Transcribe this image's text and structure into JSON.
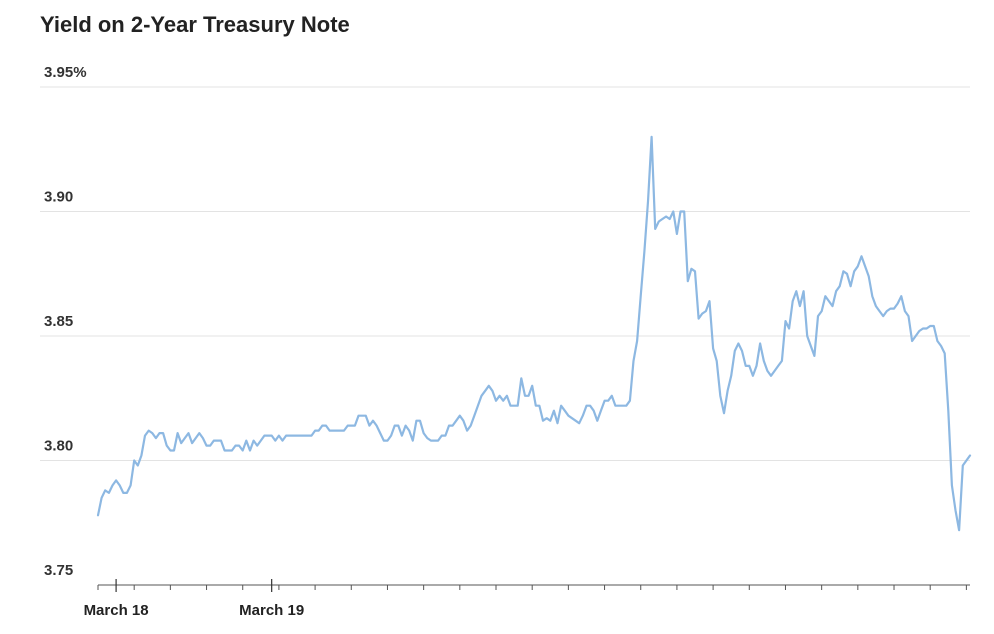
{
  "chart_data": {
    "type": "line",
    "title": "Yield on 2-Year Treasury Note",
    "xlabel": "",
    "ylabel": "",
    "ylim": [
      3.75,
      3.95
    ],
    "y_ticks": [
      3.75,
      3.8,
      3.85,
      3.9,
      3.95
    ],
    "y_tick_labels": [
      "3.75",
      "3.80",
      "3.85",
      "3.90",
      "3.95%"
    ],
    "x_tick_labels": [
      {
        "label": "March 18",
        "index": 5
      },
      {
        "label": "March 19",
        "index": 48
      }
    ],
    "minor_tick_every": 10,
    "grid": true,
    "colors": {
      "line": "#8db8e2",
      "grid": "#e3e3e3",
      "axis": "#555555"
    },
    "series": [
      {
        "values": [
          3.778,
          3.785,
          3.788,
          3.787,
          3.79,
          3.792,
          3.79,
          3.787,
          3.787,
          3.79,
          3.8,
          3.798,
          3.802,
          3.81,
          3.812,
          3.811,
          3.809,
          3.811,
          3.811,
          3.806,
          3.804,
          3.804,
          3.811,
          3.807,
          3.809,
          3.811,
          3.807,
          3.809,
          3.811,
          3.809,
          3.806,
          3.806,
          3.808,
          3.808,
          3.808,
          3.804,
          3.804,
          3.804,
          3.806,
          3.806,
          3.804,
          3.808,
          3.804,
          3.808,
          3.806,
          3.808,
          3.81,
          3.81,
          3.81,
          3.808,
          3.81,
          3.808,
          3.81,
          3.81,
          3.81,
          3.81,
          3.81,
          3.81,
          3.81,
          3.81,
          3.812,
          3.812,
          3.814,
          3.814,
          3.812,
          3.812,
          3.812,
          3.812,
          3.812,
          3.814,
          3.814,
          3.814,
          3.818,
          3.818,
          3.818,
          3.814,
          3.816,
          3.814,
          3.811,
          3.808,
          3.808,
          3.81,
          3.814,
          3.814,
          3.81,
          3.814,
          3.812,
          3.808,
          3.816,
          3.816,
          3.811,
          3.809,
          3.808,
          3.808,
          3.808,
          3.81,
          3.81,
          3.814,
          3.814,
          3.816,
          3.818,
          3.816,
          3.812,
          3.814,
          3.818,
          3.822,
          3.826,
          3.828,
          3.83,
          3.828,
          3.824,
          3.826,
          3.824,
          3.826,
          3.822,
          3.822,
          3.822,
          3.833,
          3.826,
          3.826,
          3.83,
          3.822,
          3.822,
          3.816,
          3.817,
          3.816,
          3.82,
          3.815,
          3.822,
          3.82,
          3.818,
          3.817,
          3.816,
          3.815,
          3.818,
          3.822,
          3.822,
          3.82,
          3.816,
          3.82,
          3.824,
          3.824,
          3.826,
          3.822,
          3.822,
          3.822,
          3.822,
          3.824,
          3.84,
          3.848,
          3.866,
          3.884,
          3.904,
          3.93,
          3.893,
          3.896,
          3.897,
          3.898,
          3.897,
          3.9,
          3.891,
          3.9,
          3.9,
          3.872,
          3.877,
          3.876,
          3.857,
          3.859,
          3.86,
          3.864,
          3.845,
          3.84,
          3.826,
          3.819,
          3.828,
          3.834,
          3.844,
          3.847,
          3.844,
          3.838,
          3.838,
          3.834,
          3.838,
          3.847,
          3.84,
          3.836,
          3.834,
          3.836,
          3.838,
          3.84,
          3.856,
          3.853,
          3.864,
          3.868,
          3.862,
          3.868,
          3.85,
          3.846,
          3.842,
          3.858,
          3.86,
          3.866,
          3.864,
          3.862,
          3.868,
          3.87,
          3.876,
          3.875,
          3.87,
          3.876,
          3.878,
          3.882,
          3.878,
          3.874,
          3.866,
          3.862,
          3.86,
          3.858,
          3.86,
          3.861,
          3.861,
          3.863,
          3.866,
          3.86,
          3.858,
          3.848,
          3.85,
          3.852,
          3.853,
          3.853,
          3.854,
          3.854,
          3.848,
          3.846,
          3.843,
          3.82,
          3.79,
          3.78,
          3.772,
          3.798,
          3.8,
          3.802
        ]
      }
    ]
  }
}
